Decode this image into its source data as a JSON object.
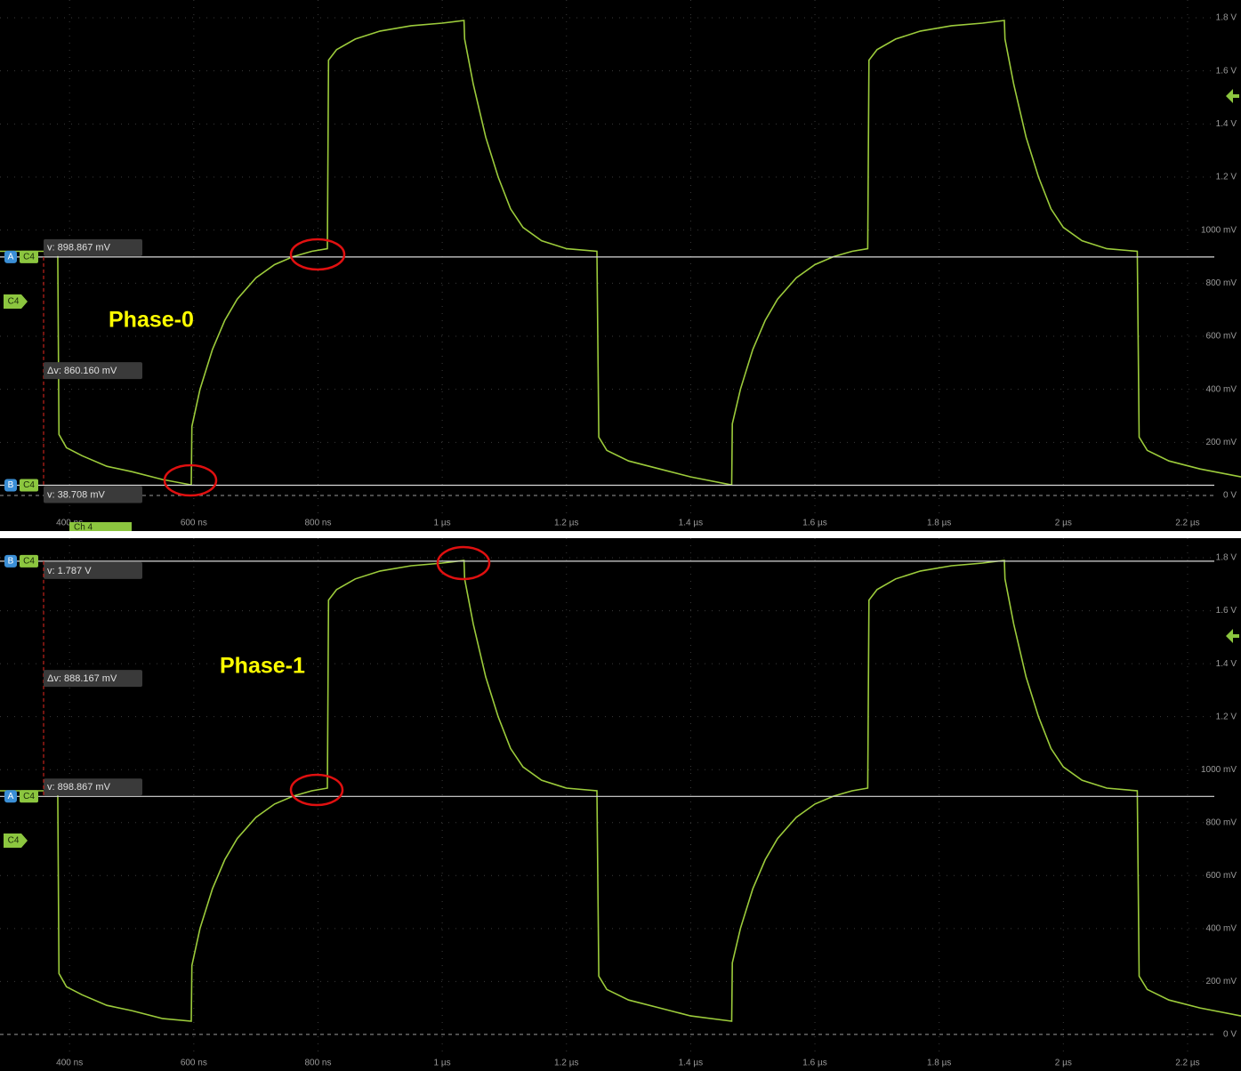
{
  "chart_data": [
    {
      "type": "line",
      "title": "Phase-0",
      "channel_label": "Ch 4",
      "channel_marker": "C4",
      "xlim": [
        288,
        2286
      ],
      "ylim": [
        -0.134,
        1.867
      ],
      "xticks": [
        {
          "value": 400,
          "label": "400 ns"
        },
        {
          "value": 600,
          "label": "600 ns"
        },
        {
          "value": 800,
          "label": "800 ns"
        },
        {
          "value": 1000,
          "label": "1 µs"
        },
        {
          "value": 1200,
          "label": "1.2 µs"
        },
        {
          "value": 1400,
          "label": "1.4 µs"
        },
        {
          "value": 1600,
          "label": "1.6 µs"
        },
        {
          "value": 1800,
          "label": "1.8 µs"
        },
        {
          "value": 2000,
          "label": "2 µs"
        },
        {
          "value": 2200,
          "label": "2.2 µs"
        }
      ],
      "yticks": [
        {
          "value": 0,
          "label": "0 V"
        },
        {
          "value": 0.2,
          "label": "200 mV"
        },
        {
          "value": 0.4,
          "label": "400 mV"
        },
        {
          "value": 0.6,
          "label": "600 mV"
        },
        {
          "value": 0.8,
          "label": "800 mV"
        },
        {
          "value": 1.0,
          "label": "1000 mV"
        },
        {
          "value": 1.2,
          "label": "1.2 V"
        },
        {
          "value": 1.4,
          "label": "1.4 V"
        },
        {
          "value": 1.6,
          "label": "1.6 V"
        },
        {
          "value": 1.8,
          "label": "1.8 V"
        }
      ],
      "grid": true,
      "color": "#9ccb3b",
      "cursors": [
        {
          "label": "A",
          "channel": "C4",
          "value": 0.898867,
          "readout": "v: 898.867 mV"
        },
        {
          "label": "B",
          "channel": "C4",
          "value": 0.038708,
          "readout": "v: 38.708 mV"
        }
      ],
      "delta": {
        "value": 0.86016,
        "label": "Δv: 860.160 mV"
      },
      "x": [
        288,
        381,
        383,
        395,
        420,
        460,
        500,
        550,
        596,
        597,
        610,
        630,
        650,
        670,
        700,
        730,
        760,
        790,
        815,
        817,
        830,
        860,
        900,
        950,
        1000,
        1035,
        1036,
        1050,
        1070,
        1090,
        1110,
        1130,
        1160,
        1200,
        1249,
        1252,
        1265,
        1300,
        1350,
        1400,
        1466,
        1467,
        1480,
        1500,
        1520,
        1540,
        1570,
        1600,
        1630,
        1660,
        1685,
        1687,
        1700,
        1730,
        1770,
        1820,
        1870,
        1905,
        1906,
        1920,
        1940,
        1960,
        1980,
        2000,
        2030,
        2070,
        2119,
        2122,
        2135,
        2170,
        2220,
        2286
      ],
      "values": [
        0.92,
        0.92,
        0.23,
        0.18,
        0.15,
        0.11,
        0.09,
        0.06,
        0.04,
        0.26,
        0.4,
        0.55,
        0.66,
        0.74,
        0.82,
        0.87,
        0.9,
        0.92,
        0.93,
        1.64,
        1.68,
        1.72,
        1.75,
        1.77,
        1.78,
        1.79,
        1.72,
        1.55,
        1.35,
        1.2,
        1.08,
        1.01,
        0.96,
        0.93,
        0.92,
        0.22,
        0.17,
        0.13,
        0.1,
        0.07,
        0.04,
        0.27,
        0.4,
        0.55,
        0.66,
        0.74,
        0.82,
        0.87,
        0.9,
        0.92,
        0.93,
        1.64,
        1.68,
        1.72,
        1.75,
        1.77,
        1.78,
        1.79,
        1.72,
        1.55,
        1.35,
        1.2,
        1.08,
        1.01,
        0.96,
        0.93,
        0.92,
        0.22,
        0.17,
        0.13,
        0.1,
        0.07
      ]
    },
    {
      "type": "line",
      "title": "Phase-1",
      "channel_marker": "C4",
      "xlim": [
        288,
        2286
      ],
      "ylim": [
        -0.138,
        1.874
      ],
      "xticks": [
        {
          "value": 400,
          "label": "400 ns"
        },
        {
          "value": 600,
          "label": "600 ns"
        },
        {
          "value": 800,
          "label": "800 ns"
        },
        {
          "value": 1000,
          "label": "1 µs"
        },
        {
          "value": 1200,
          "label": "1.2 µs"
        },
        {
          "value": 1400,
          "label": "1.4 µs"
        },
        {
          "value": 1600,
          "label": "1.6 µs"
        },
        {
          "value": 1800,
          "label": "1.8 µs"
        },
        {
          "value": 2000,
          "label": "2 µs"
        },
        {
          "value": 2200,
          "label": "2.2 µs"
        }
      ],
      "yticks": [
        {
          "value": 0,
          "label": "0 V"
        },
        {
          "value": 0.2,
          "label": "200 mV"
        },
        {
          "value": 0.4,
          "label": "400 mV"
        },
        {
          "value": 0.6,
          "label": "600 mV"
        },
        {
          "value": 0.8,
          "label": "800 mV"
        },
        {
          "value": 1.0,
          "label": "1000 mV"
        },
        {
          "value": 1.2,
          "label": "1.2 V"
        },
        {
          "value": 1.4,
          "label": "1.4 V"
        },
        {
          "value": 1.6,
          "label": "1.6 V"
        },
        {
          "value": 1.8,
          "label": "1.8 V"
        }
      ],
      "grid": true,
      "color": "#9ccb3b",
      "cursors": [
        {
          "label": "B",
          "channel": "C4",
          "value": 1.787,
          "readout": "v: 1.787 V"
        },
        {
          "label": "A",
          "channel": "C4",
          "value": 0.898867,
          "readout": "v: 898.867 mV"
        }
      ],
      "delta": {
        "value": 0.888167,
        "label": "Δv: 888.167 mV"
      },
      "x": [
        288,
        381,
        383,
        395,
        420,
        460,
        500,
        550,
        596,
        597,
        610,
        630,
        650,
        670,
        700,
        730,
        760,
        790,
        815,
        817,
        830,
        860,
        900,
        950,
        1000,
        1035,
        1036,
        1050,
        1070,
        1090,
        1110,
        1130,
        1160,
        1200,
        1249,
        1252,
        1265,
        1300,
        1350,
        1400,
        1466,
        1467,
        1480,
        1500,
        1520,
        1540,
        1570,
        1600,
        1630,
        1660,
        1685,
        1687,
        1700,
        1730,
        1770,
        1820,
        1870,
        1905,
        1906,
        1920,
        1940,
        1960,
        1980,
        2000,
        2030,
        2070,
        2119,
        2122,
        2135,
        2170,
        2220,
        2286
      ],
      "values": [
        0.92,
        0.92,
        0.23,
        0.18,
        0.15,
        0.11,
        0.09,
        0.06,
        0.05,
        0.26,
        0.4,
        0.55,
        0.66,
        0.74,
        0.82,
        0.87,
        0.9,
        0.92,
        0.93,
        1.64,
        1.68,
        1.72,
        1.75,
        1.77,
        1.78,
        1.79,
        1.72,
        1.55,
        1.35,
        1.2,
        1.08,
        1.01,
        0.96,
        0.93,
        0.92,
        0.22,
        0.17,
        0.13,
        0.1,
        0.07,
        0.05,
        0.27,
        0.4,
        0.55,
        0.66,
        0.74,
        0.82,
        0.87,
        0.9,
        0.92,
        0.93,
        1.64,
        1.68,
        1.72,
        1.75,
        1.77,
        1.78,
        1.79,
        1.72,
        1.55,
        1.35,
        1.2,
        1.08,
        1.01,
        0.96,
        0.93,
        0.92,
        0.22,
        0.17,
        0.13,
        0.1,
        0.07
      ]
    }
  ]
}
